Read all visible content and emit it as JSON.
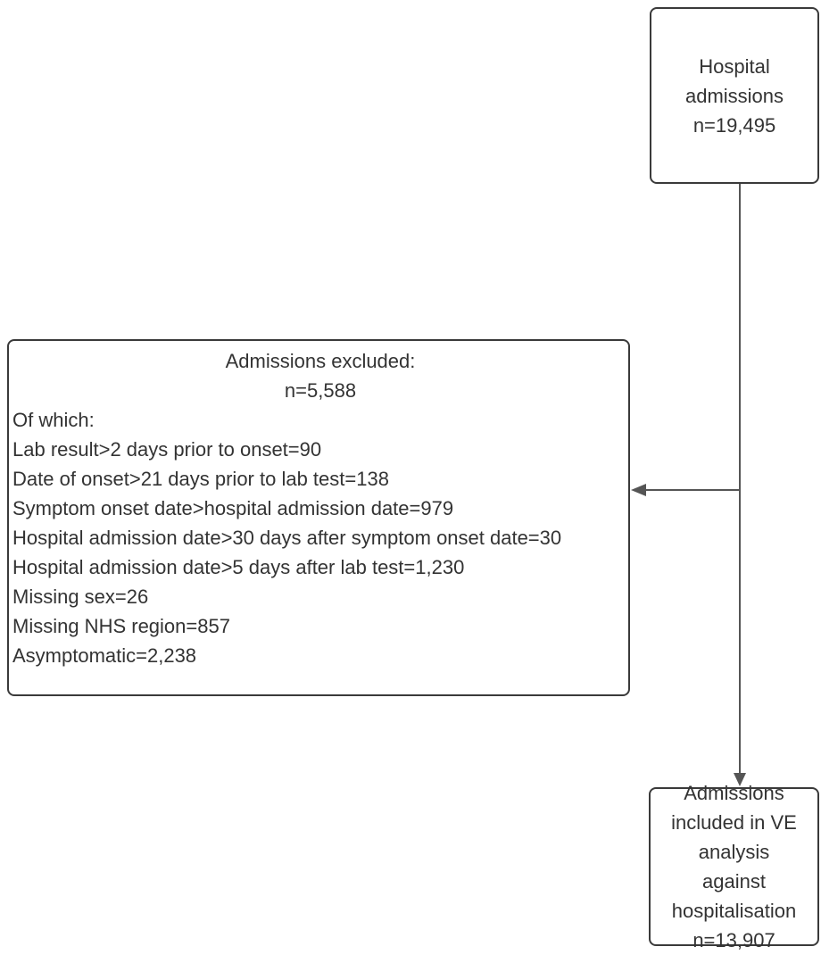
{
  "nodes": [
    {
      "lines": [
        "Hospital",
        "admissions",
        "n=19,495"
      ]
    },
    {
      "heading": [
        "Admissions excluded:",
        "n=5,588"
      ],
      "items": [
        "Of which:",
        "Lab result>2 days prior to onset=90",
        "Date of onset>21 days prior to lab test=138",
        "Symptom onset date>hospital admission date=979",
        "Hospital admission date>30 days after symptom onset date=30",
        "Hospital admission date>5 days after lab test=1,230",
        "Missing sex=26",
        "Missing NHS region=857",
        "Asymptomatic=2,238"
      ]
    },
    {
      "lines": [
        "Admissions",
        "included in VE",
        "analysis",
        "against",
        "hospitalisation",
        "n=13,907"
      ]
    }
  ]
}
